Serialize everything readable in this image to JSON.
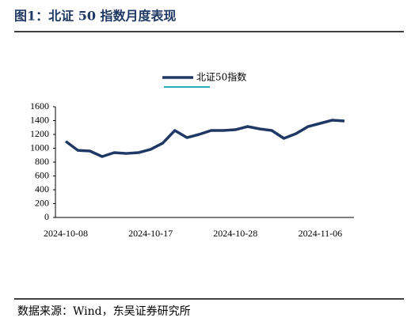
{
  "title": "图1：北证 50 指数月度表现",
  "source": "数据来源：Wind，东吴证券研究所",
  "chart_data": {
    "type": "line",
    "categories": [
      "2024-10-08",
      null,
      null,
      null,
      null,
      null,
      null,
      "2024-10-17",
      null,
      null,
      null,
      null,
      null,
      null,
      "2024-10-28",
      null,
      null,
      null,
      null,
      null,
      null,
      "2024-11-06",
      null,
      null
    ],
    "series": [
      {
        "name": "北证50指数",
        "color": "#1f3864",
        "values": [
          1100,
          970,
          960,
          880,
          937,
          925,
          937,
          983,
          1074,
          1257,
          1154,
          1200,
          1257,
          1257,
          1268,
          1314,
          1280,
          1257,
          1143,
          1211,
          1314,
          1360,
          1406,
          1394
        ]
      }
    ],
    "ylim": [
      0,
      1600
    ],
    "yticks": [
      0,
      200,
      400,
      600,
      800,
      1000,
      1200,
      1400,
      1600
    ],
    "grid": false
  }
}
